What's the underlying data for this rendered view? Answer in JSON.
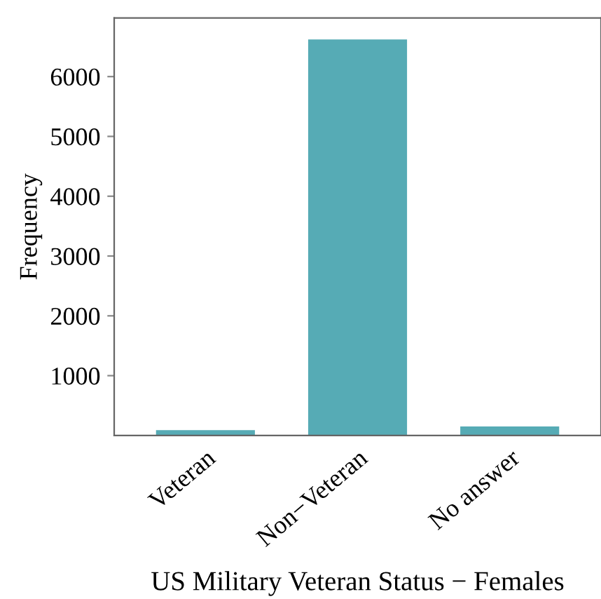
{
  "chart_data": {
    "type": "bar",
    "xlabel": "US Military Veteran Status − Females",
    "ylabel": "Frequency",
    "categories": [
      "Veteran",
      "Non−Veteran",
      "No answer"
    ],
    "values": [
      90,
      6620,
      150
    ],
    "color": "#56abb5",
    "ylim": [
      0,
      6980
    ],
    "yticks": [
      1000,
      2000,
      3000,
      4000,
      5000,
      6000
    ],
    "grid": false,
    "legend": false
  }
}
